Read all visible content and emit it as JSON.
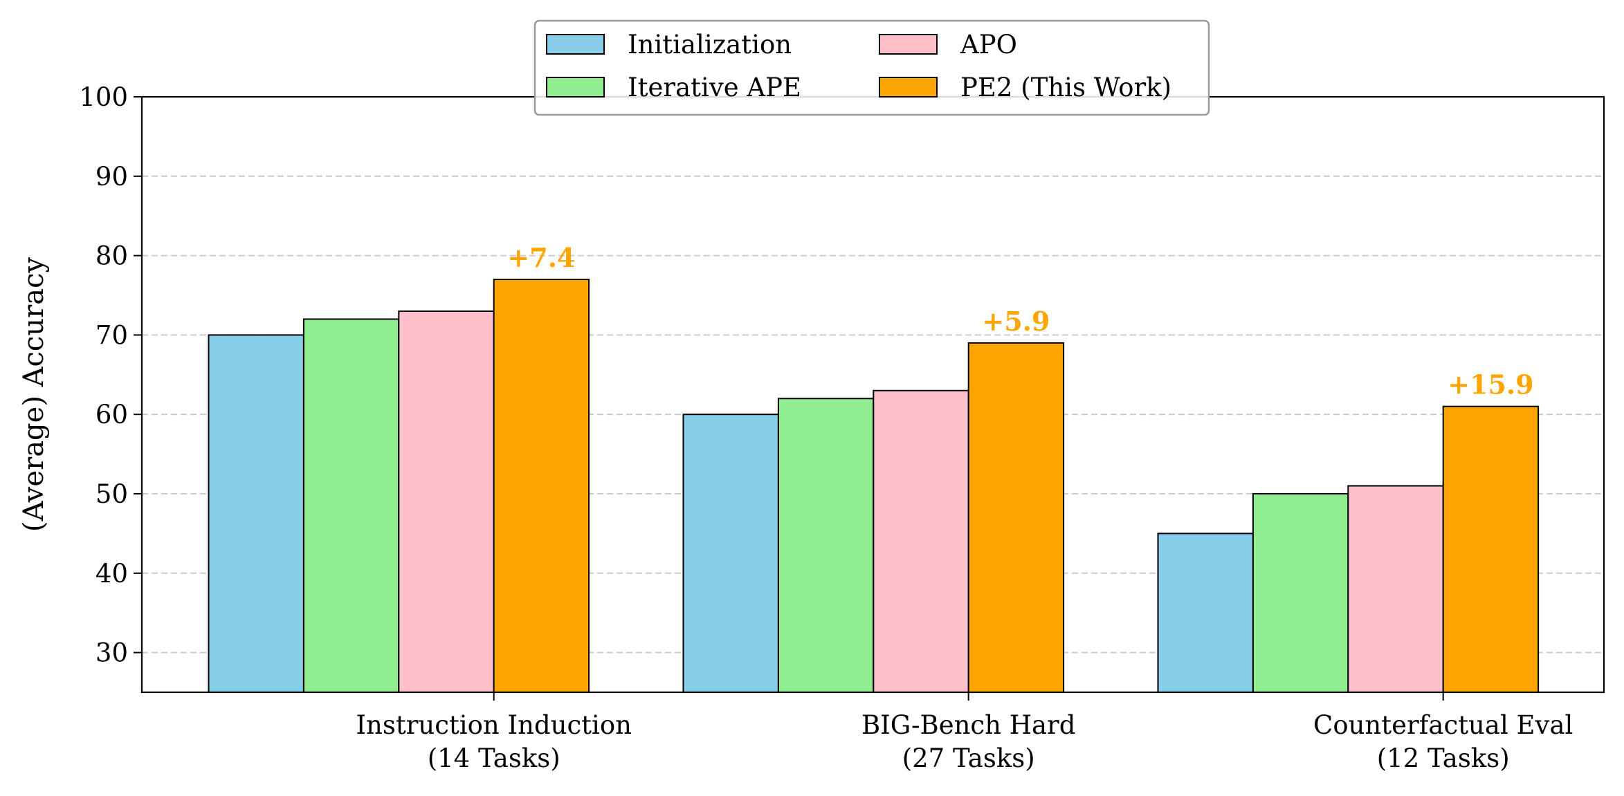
{
  "chart_data": {
    "type": "bar",
    "categories": [
      [
        "Instruction Induction",
        "(14 Tasks)"
      ],
      [
        "BIG-Bench Hard",
        "(27 Tasks)"
      ],
      [
        "Counterfactual Eval",
        "(12 Tasks)"
      ]
    ],
    "series": [
      {
        "name": "Initialization",
        "values": [
          70,
          60,
          45
        ],
        "color": "#87CEEB"
      },
      {
        "name": "Iterative APE",
        "values": [
          72,
          62,
          50
        ],
        "color": "#90EE90"
      },
      {
        "name": "APO",
        "values": [
          73,
          63,
          51
        ],
        "color": "#FFC0CB"
      },
      {
        "name": "PE2 (This Work)",
        "values": [
          77,
          69,
          61
        ],
        "color": "#FFA500"
      }
    ],
    "annotations": [
      "+7.4",
      "+5.9",
      "+15.9"
    ],
    "annotation_color": "#FFA500",
    "ylabel": "(Average) Accuracy",
    "xlabel": "",
    "title": "",
    "ylim": [
      25,
      100
    ],
    "yticks": [
      30,
      40,
      50,
      60,
      70,
      80,
      90,
      100
    ],
    "grid": "horizontal-dashed",
    "legend_position": "top-center"
  }
}
